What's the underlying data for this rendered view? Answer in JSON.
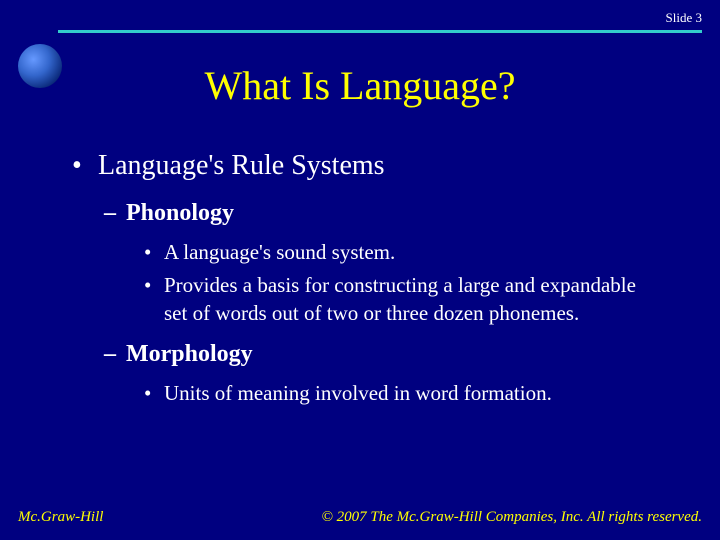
{
  "slide": {
    "number_label": "Slide 3",
    "title": "What Is Language?",
    "background_color": "#000080",
    "title_color": "#ffff00",
    "text_color": "#ffffff",
    "accent_line_color": "#33cccc"
  },
  "content": {
    "main_bullet": "Language's Rule Systems",
    "sections": [
      {
        "heading": "Phonology",
        "points": [
          "A language's sound system.",
          "Provides a basis for constructing a large and expandable set of words out of two or three dozen phonemes."
        ]
      },
      {
        "heading": "Morphology",
        "points": [
          "Units of meaning involved in word formation."
        ]
      }
    ]
  },
  "footer": {
    "left": "Mc.Graw-Hill",
    "right": "© 2007 The Mc.Graw-Hill Companies, Inc.  All rights reserved."
  }
}
